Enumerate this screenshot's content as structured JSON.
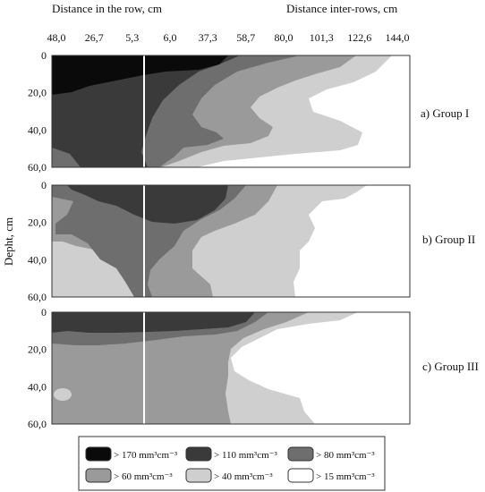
{
  "chart_data": {
    "type": "heatmap",
    "x_label_left": "Distance in the row, cm",
    "x_label_right": "Distance inter-rows, cm",
    "y_label": "Depht, cm",
    "x_ticks": [
      "48,0",
      "26,7",
      "5,3",
      "6,0",
      "37,3",
      "58,7",
      "80,0",
      "101,3",
      "122,6",
      "144,0"
    ],
    "y_ticks": [
      "0",
      "20,0",
      "40,0",
      "60,0"
    ],
    "x_range_cm": [
      -48.0,
      144.0
    ],
    "y_range_cm": [
      0,
      60
    ],
    "row_marker_x_cm": 0,
    "panels": [
      {
        "label": "a) Group I"
      },
      {
        "label": "b) Group II"
      },
      {
        "label": "c) Group III"
      }
    ],
    "legend": [
      {
        "label": "> 170 mm³cm⁻³",
        "color": "#0a0a0a"
      },
      {
        "label": "> 110 mm³cm⁻³",
        "color": "#3a3a3a"
      },
      {
        "label": "> 80 mm³cm⁻³",
        "color": "#6e6e6e"
      },
      {
        "label": "> 60 mm³cm⁻³",
        "color": "#9a9a9a"
      },
      {
        "label": "> 40 mm³cm⁻³",
        "color": "#cfcfcf"
      },
      {
        "label": "> 15 mm³cm⁻³",
        "color": "#ffffff"
      }
    ]
  }
}
